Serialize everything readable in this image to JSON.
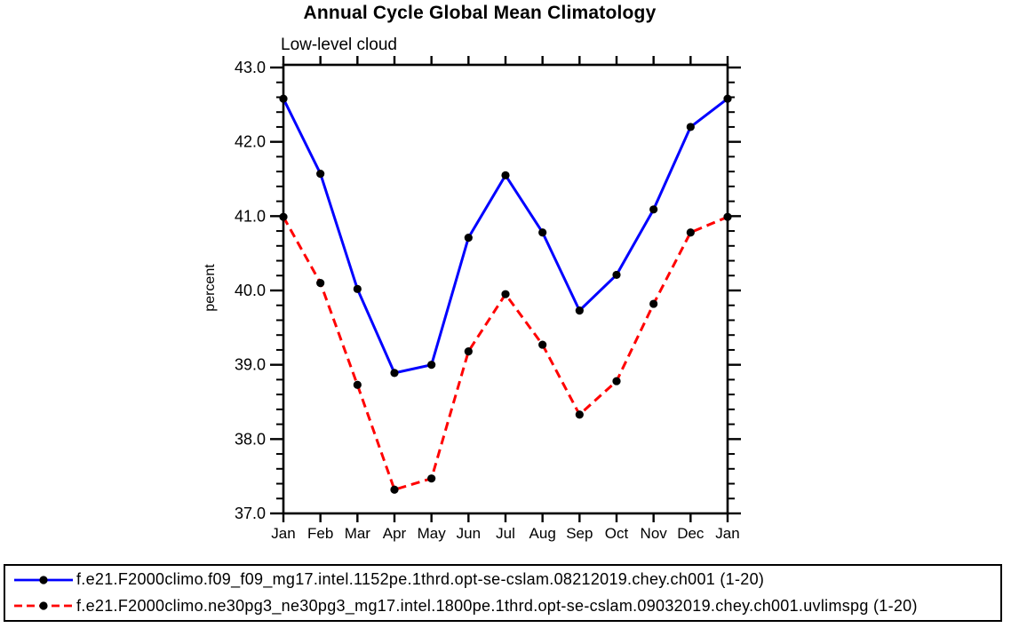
{
  "page": {
    "background": "#ffffff"
  },
  "chart_data": {
    "type": "line",
    "title": "Annual Cycle Global Mean Climatology",
    "subtitle": "Low-level cloud",
    "xlabel": "",
    "ylabel": "percent",
    "categories": [
      "Jan",
      "Feb",
      "Mar",
      "Apr",
      "May",
      "Jun",
      "Jul",
      "Aug",
      "Sep",
      "Oct",
      "Nov",
      "Dec",
      "Jan"
    ],
    "ylim": [
      37.0,
      43.0
    ],
    "yticks": [
      37.0,
      38.0,
      39.0,
      40.0,
      41.0,
      42.0,
      43.0
    ],
    "ytick_labels": [
      "37.0",
      "38.0",
      "39.0",
      "40.0",
      "41.0",
      "42.0",
      "43.0"
    ],
    "y_minor_step": 0.2,
    "grid": false,
    "legend_position": "bottom",
    "marker": {
      "shape": "circle",
      "color": "#000000"
    },
    "axis_color": "#000000",
    "series": [
      {
        "name": "f.e21.F2000climo.f09_f09_mg17.intel.1152pe.1thrd.opt-se-cslam.08212019.chey.ch001 (1-20)",
        "color": "#0000ff",
        "line_style": "solid",
        "values": [
          42.58,
          41.57,
          40.02,
          38.89,
          39.0,
          40.71,
          41.55,
          40.78,
          39.73,
          40.21,
          41.09,
          42.2,
          42.58
        ]
      },
      {
        "name": "f.e21.F2000climo.ne30pg3_ne30pg3_mg17.intel.1800pe.1thrd.opt-se-cslam.09032019.chey.ch001.uvlimspg (1-20)",
        "color": "#ff0000",
        "line_style": "dashed",
        "values": [
          40.99,
          40.1,
          38.73,
          37.32,
          37.47,
          39.18,
          39.95,
          39.27,
          38.33,
          38.78,
          39.82,
          40.78,
          40.99
        ]
      }
    ]
  }
}
